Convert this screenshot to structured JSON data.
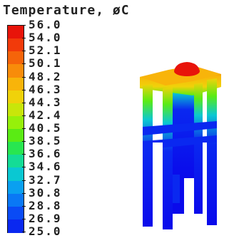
{
  "legend": {
    "title": "Temperature, øC",
    "labels": [
      "56.0",
      "54.0",
      "52.1",
      "50.1",
      "48.2",
      "46.3",
      "44.3",
      "42.4",
      "40.5",
      "38.5",
      "36.6",
      "34.6",
      "32.7",
      "30.8",
      "28.8",
      "26.9",
      "25.0"
    ],
    "colors": [
      "#e8140a",
      "#f23a0a",
      "#f5640a",
      "#f88c0a",
      "#f8b40a",
      "#f0d20a",
      "#c8e60a",
      "#96f00a",
      "#5aeb14",
      "#28e650",
      "#14dc96",
      "#0ac8d2",
      "#0aa0f0",
      "#0a78f5",
      "#0a4bf5",
      "#0a28f0",
      "#0a0aeb"
    ]
  },
  "model": {
    "description": "CFD temperature contour of a 3D structure",
    "colors": {
      "hot": "#e8140a",
      "orange": "#f8b40a",
      "yellow": "#f0d20a",
      "green": "#5aeb14",
      "cyan": "#0ac8d2",
      "blue": "#0a28f0",
      "darkblue": "#0a0aeb",
      "white": "#ffffff"
    }
  }
}
